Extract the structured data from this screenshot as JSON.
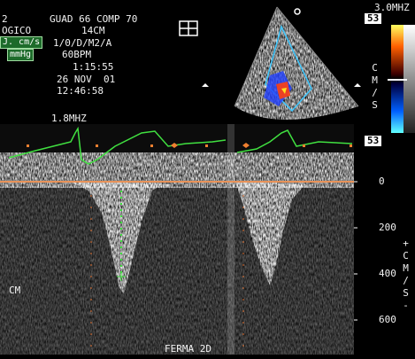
{
  "header": {
    "probe": "2",
    "gain": "GUAD 66 COMP 70",
    "preset": "OGICO",
    "depth": "14CM",
    "settings": "1/0/D/M2/A",
    "heart_rate": "60BPM",
    "timer": "1:15:55",
    "date": "26 NOV  01",
    "time": "12:46:58",
    "unit_velocity": "J. cm/s",
    "unit_pressure": "mmHg"
  },
  "color_bar": {
    "frequency": "3.0MHZ",
    "top": "53",
    "unit": "CM/S",
    "bottom": "53"
  },
  "doppler": {
    "frequency": "1.8MHZ",
    "scale": [
      "0",
      "200",
      "400",
      "600"
    ],
    "scale_unit": "+CM/S-",
    "depth_unit": "CM",
    "status": "FERMA 2D"
  }
}
